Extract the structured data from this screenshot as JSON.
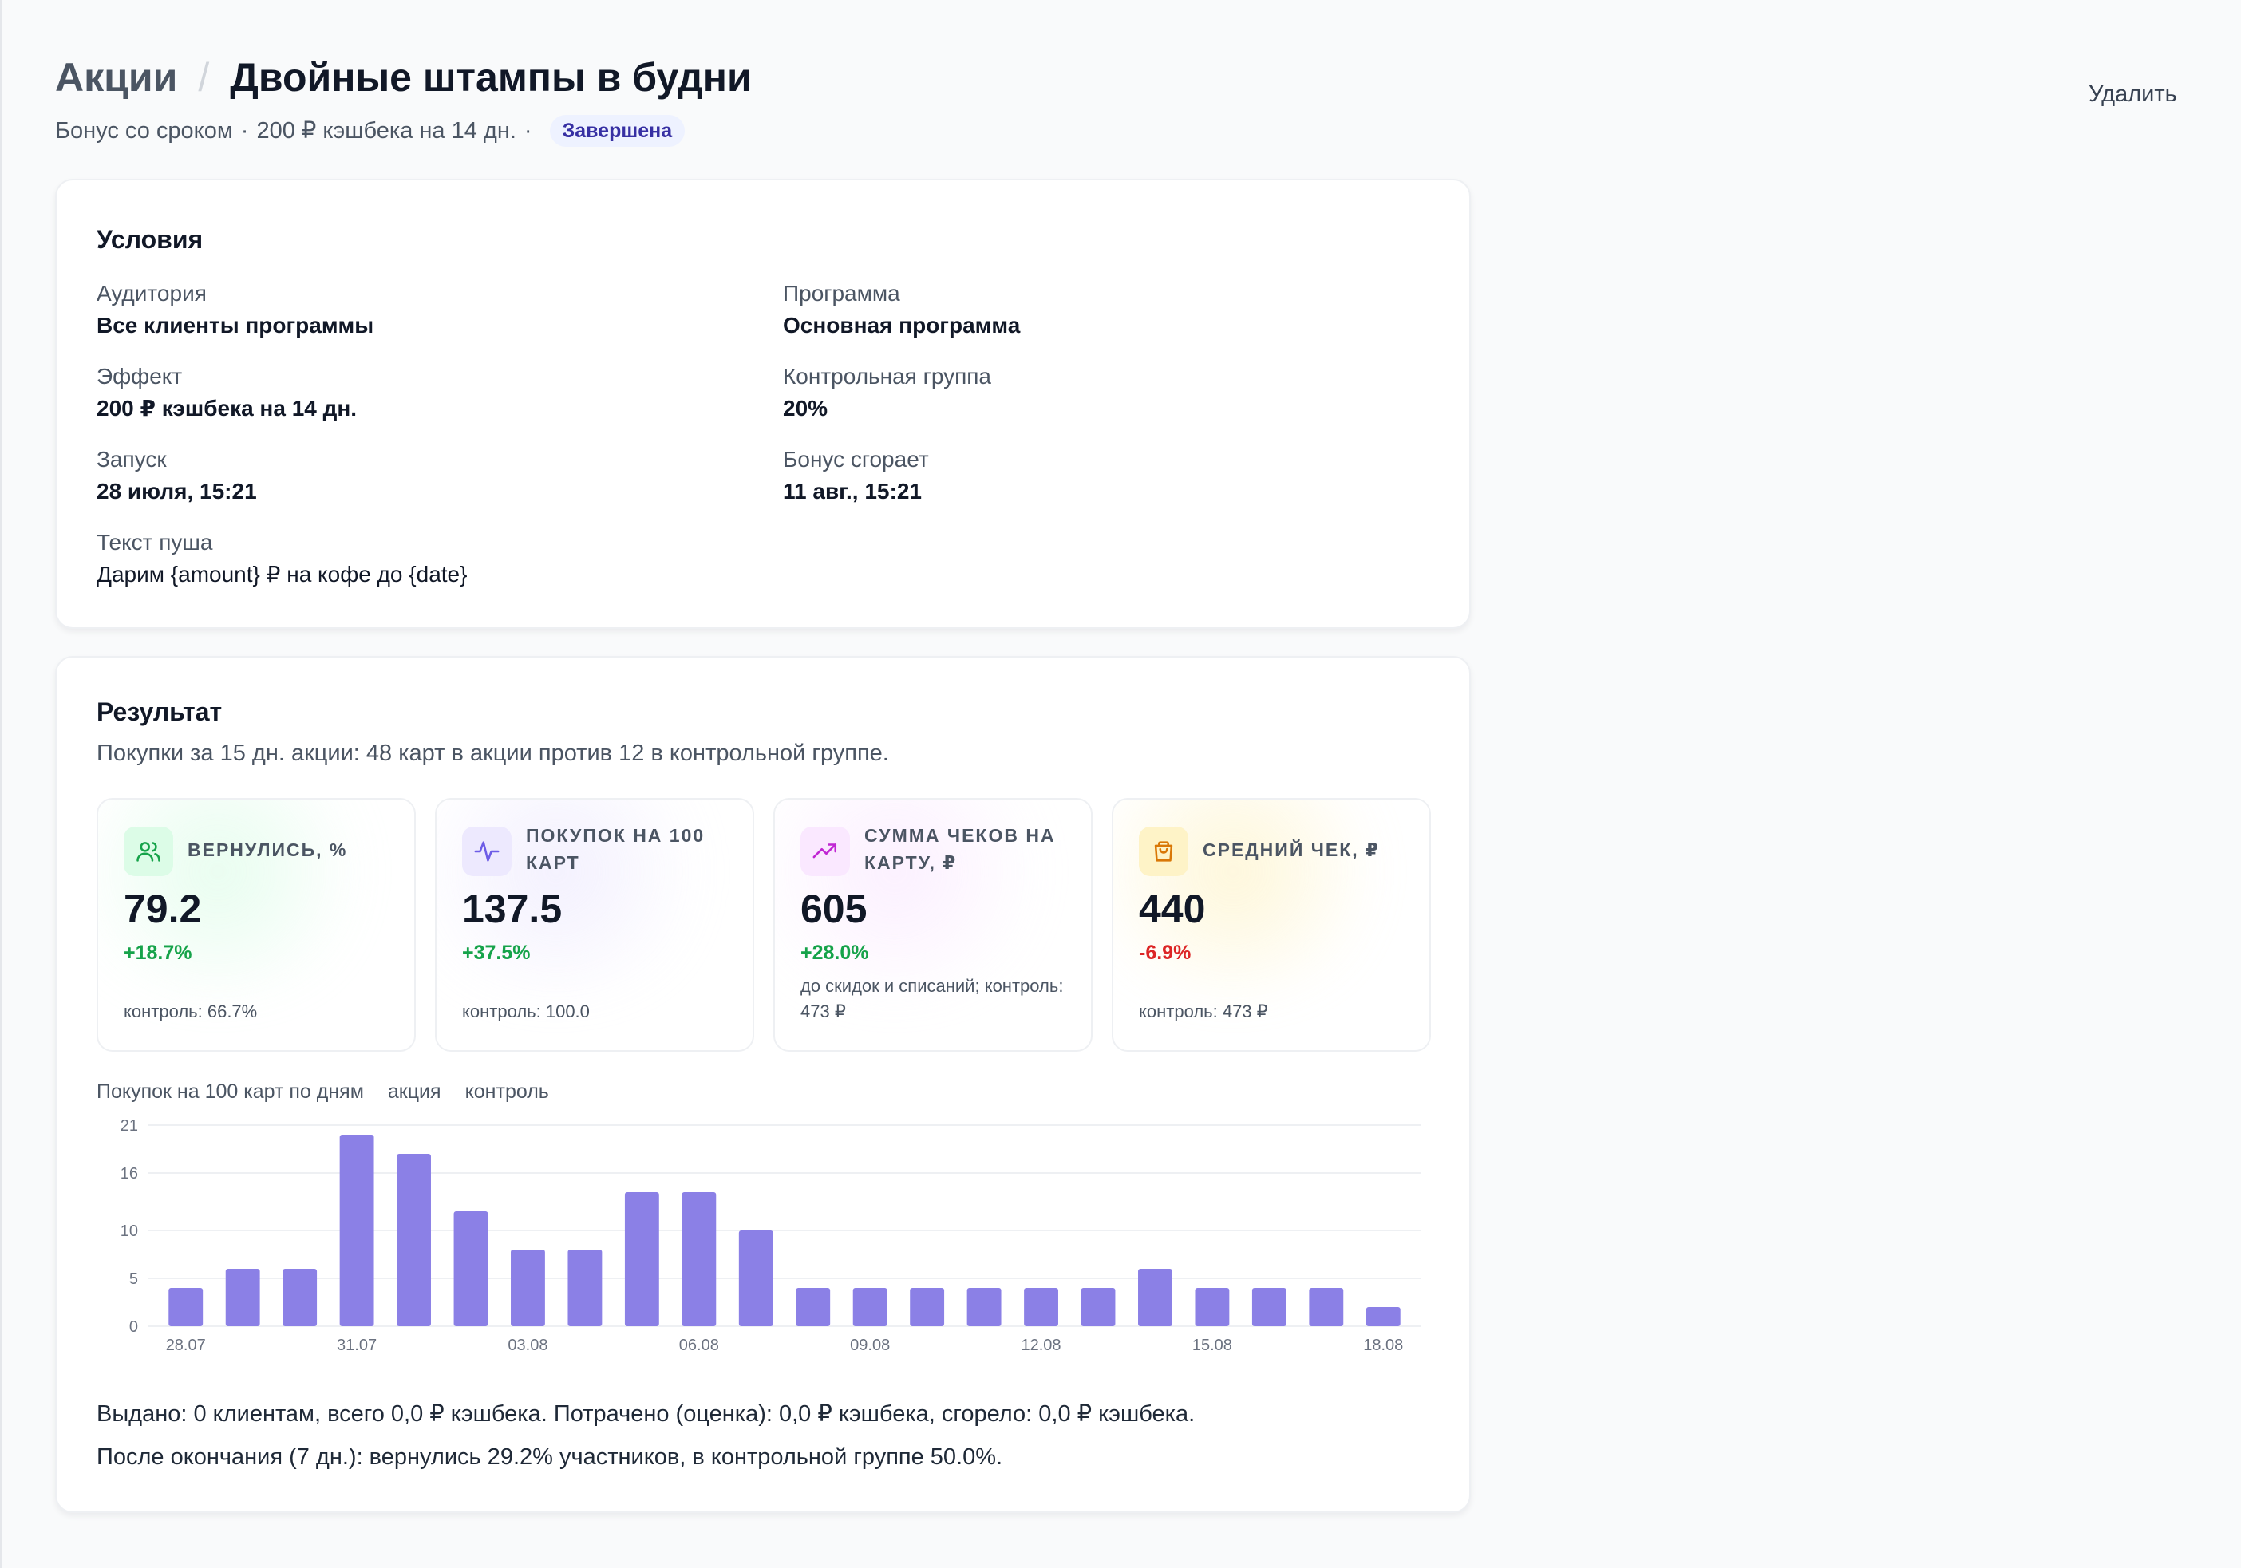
{
  "header": {
    "breadcrumb_root": "Акции",
    "breadcrumb_sep": "/",
    "title": "Двойные штампы в будни",
    "subtitle_type": "Бонус со сроком",
    "subtitle_sep": "·",
    "subtitle_effect": "200 ₽ кэшбека на 14 дн.",
    "status": "Завершена",
    "delete_label": "Удалить"
  },
  "conditions": {
    "title": "Условия",
    "items": [
      {
        "label": "Аудитория",
        "value": "Все клиенты программы"
      },
      {
        "label": "Программа",
        "value": "Основная программа"
      },
      {
        "label": "Эффект",
        "value": "200 ₽ кэшбека на 14 дн."
      },
      {
        "label": "Контрольная группа",
        "value": "20%"
      },
      {
        "label": "Запуск",
        "value": "28 июля, 15:21"
      },
      {
        "label": "Бонус сгорает",
        "value": "11 авг., 15:21"
      },
      {
        "label": "Текст пуша",
        "value": "Дарим {amount} ₽ на кофе до {date}"
      }
    ]
  },
  "result": {
    "title": "Результат",
    "description": "Покупки за 15 дн. акции: 48 карт в акции против 12 в контрольной группе.",
    "metrics": [
      {
        "icon": "users-icon",
        "label": "Вернулись, %",
        "value": "79.2",
        "delta": "+18.7%",
        "delta_color": "#16a34a",
        "note": "контроль: 66.7%",
        "accent": "#dcfce7",
        "icon_color": "#16a34a"
      },
      {
        "icon": "activity-icon",
        "label": "Покупок на 100 карт",
        "value": "137.5",
        "delta": "+37.5%",
        "delta_color": "#16a34a",
        "note": "контроль: 100.0",
        "accent": "#ede9fe",
        "icon_color": "#6d5ce6"
      },
      {
        "icon": "trending-up-icon",
        "label": "Сумма чеков на карту, ₽",
        "value": "605",
        "delta": "+28.0%",
        "delta_color": "#16a34a",
        "note": "до скидок и списаний; контроль: 473 ₽",
        "accent": "#fae8ff",
        "icon_color": "#c026d3"
      },
      {
        "icon": "shopping-bag-icon",
        "label": "Средний чек, ₽",
        "value": "440",
        "delta": "-6.9%",
        "delta_color": "#dc2626",
        "note": "контроль: 473 ₽",
        "accent": "#fef3c7",
        "icon_color": "#d97706"
      }
    ],
    "chart_header": {
      "title": "Покупок на 100 карт по дням",
      "legend_promo": "акция",
      "legend_control": "контроль"
    },
    "footer_issued": "Выдано: 0 клиентам, всего 0,0 ₽ кэшбека. Потрачено (оценка): 0,0 ₽ кэшбека, сгорело: 0,0 ₽ кэшбека.",
    "footer_after": "После окончания (7 дн.): вернулись 29.2% участников, в контрольной группе 50.0%."
  },
  "chart_data": {
    "type": "bar",
    "title": "Покупок на 100 карт по дням",
    "categories": [
      "28.07",
      "29.07",
      "30.07",
      "31.07",
      "01.08",
      "02.08",
      "03.08",
      "04.08",
      "05.08",
      "06.08",
      "07.08",
      "08.08",
      "09.08",
      "10.08",
      "11.08",
      "12.08",
      "13.08",
      "14.08",
      "15.08",
      "16.08",
      "17.08",
      "18.08"
    ],
    "tick_labels": [
      "28.07",
      "31.07",
      "03.08",
      "06.08",
      "09.08",
      "12.08",
      "15.08",
      "18.08"
    ],
    "series": [
      {
        "name": "акция",
        "values": [
          4,
          6,
          6,
          20,
          18,
          12,
          8,
          8,
          14,
          14,
          10,
          4,
          4,
          4,
          4,
          4,
          4,
          6,
          4,
          4,
          4,
          2
        ],
        "color": "#8b80e6"
      }
    ],
    "yticks": [
      0,
      5,
      10,
      16,
      21
    ],
    "ylim": [
      0,
      21
    ],
    "grid": true
  }
}
